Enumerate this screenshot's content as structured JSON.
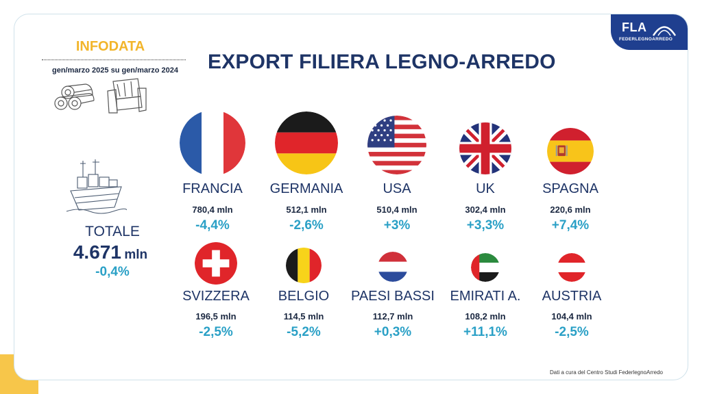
{
  "brand": {
    "logo_text": "FLA",
    "logo_subtext": "FEDERLEGNOARREDO"
  },
  "infodata": {
    "title": "INFODATA",
    "period": "gen/marzo 2025 su gen/marzo 2024"
  },
  "title": "EXPORT FILIERA LEGNO-ARREDO",
  "total": {
    "label": "TOTALE",
    "value": "4.671",
    "unit": "mln",
    "change": "-0,4%"
  },
  "countries": [
    {
      "name": "FRANCIA",
      "value": "780,4 mln",
      "change": "-4,4%",
      "flag": "france-flag"
    },
    {
      "name": "GERMANIA",
      "value": "512,1 mln",
      "change": "-2,6%",
      "flag": "germany-flag"
    },
    {
      "name": "USA",
      "value": "510,4 mln",
      "change": "+3%",
      "flag": "usa-flag"
    },
    {
      "name": "UK",
      "value": "302,4 mln",
      "change": "+3,3%",
      "flag": "uk-flag"
    },
    {
      "name": "SPAGNA",
      "value": "220,6 mln",
      "change": "+7,4%",
      "flag": "spain-flag"
    },
    {
      "name": "SVIZZERA",
      "value": "196,5 mln",
      "change": "-2,5%",
      "flag": "switzerland-flag"
    },
    {
      "name": "BELGIO",
      "value": "114,5 mln",
      "change": "-5,2%",
      "flag": "belgium-flag"
    },
    {
      "name": "PAESI BASSI",
      "value": "112,7 mln",
      "change": "+0,3%",
      "flag": "netherlands-flag"
    },
    {
      "name": "EMIRATI A.",
      "value": "108,2 mln",
      "change": "+11,1%",
      "flag": "uae-flag"
    },
    {
      "name": "AUSTRIA",
      "value": "104,4 mln",
      "change": "-2,5%",
      "flag": "austria-flag"
    }
  ],
  "colors": {
    "title": "#1e3466",
    "accent_yellow": "#f2b52b",
    "change": "#2aa0c6",
    "logo_bg": "#1f3f8f"
  },
  "footer": "Dati a cura del Centro Studi FederlegnoArredo"
}
